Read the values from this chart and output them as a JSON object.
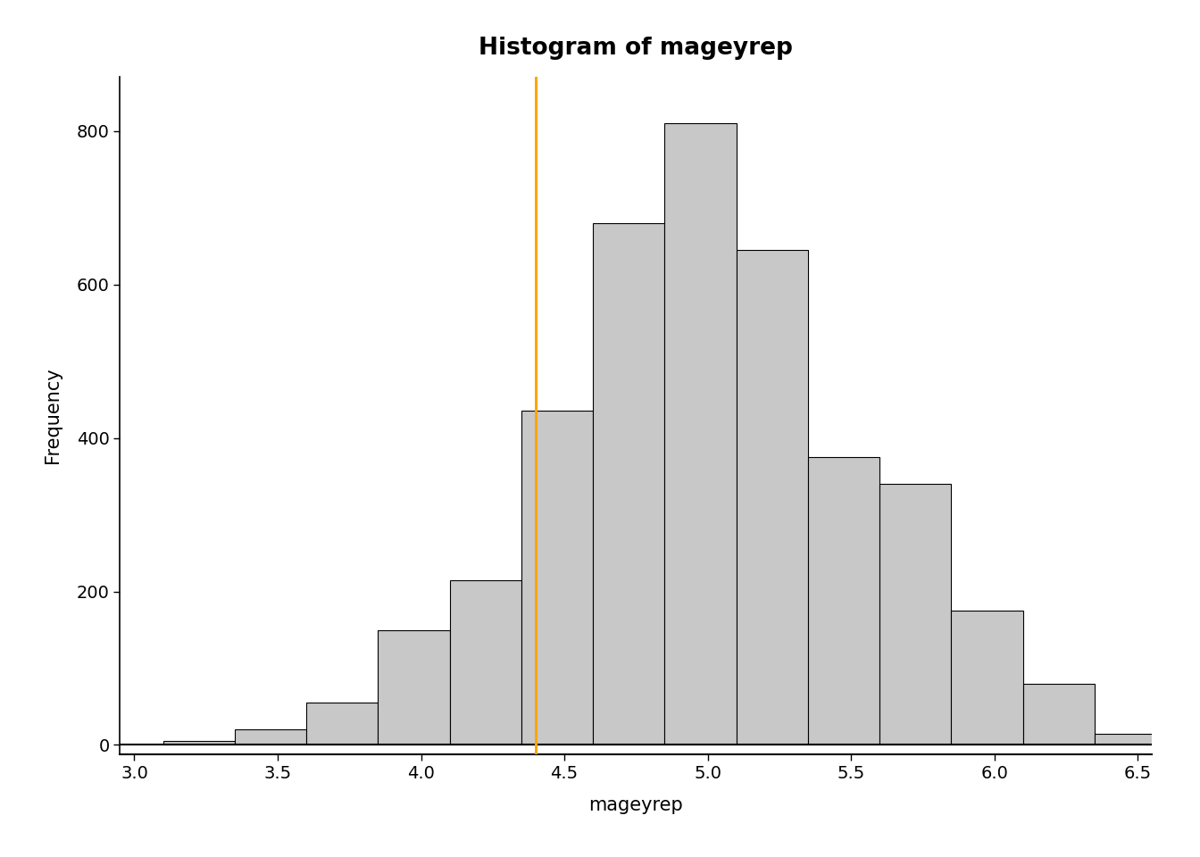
{
  "title": "Histogram of mageyrep",
  "xlabel": "mageyrep",
  "ylabel": "Frequency",
  "bar_color": "#c8c8c8",
  "bar_edgecolor": "#000000",
  "vline_color": "#FFA500",
  "vline_x": 4.4,
  "xlim": [
    2.95,
    6.55
  ],
  "ylim": [
    -12,
    870
  ],
  "yticks": [
    0,
    200,
    400,
    600,
    800
  ],
  "xticks": [
    3.0,
    3.5,
    4.0,
    4.5,
    5.0,
    5.5,
    6.0,
    6.5
  ],
  "bin_edges": [
    3.1,
    3.35,
    3.6,
    3.85,
    4.1,
    4.35,
    4.6,
    4.85,
    5.1,
    5.35,
    5.6,
    5.85,
    6.1,
    6.35
  ],
  "bin_heights": [
    5,
    20,
    55,
    150,
    215,
    435,
    680,
    810,
    645,
    375,
    340,
    175,
    80,
    15
  ],
  "title_fontsize": 19,
  "axis_label_fontsize": 15,
  "tick_fontsize": 14,
  "background_color": "#ffffff"
}
